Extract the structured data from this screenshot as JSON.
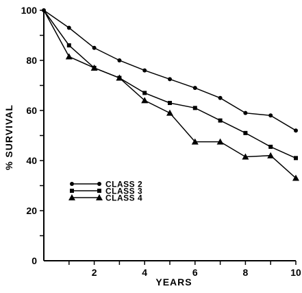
{
  "chart_data": {
    "type": "line",
    "xlabel": "YEARS",
    "ylabel": "% SURVIVAL",
    "xlim": [
      0,
      10
    ],
    "ylim": [
      0,
      100
    ],
    "x_ticks": [
      2,
      4,
      6,
      8,
      10
    ],
    "x_tick_labels": [
      "2",
      "4",
      "6",
      "8",
      "10"
    ],
    "y_ticks": [
      0,
      20,
      40,
      60,
      80,
      100
    ],
    "y_tick_labels": [
      "0",
      "20",
      "40",
      "60",
      "80",
      "100"
    ],
    "grid": false,
    "legend_position": "lower-left",
    "x": [
      0,
      1,
      2,
      3,
      4,
      5,
      6,
      7,
      8,
      9,
      10
    ],
    "series": [
      {
        "name": "CLASS 2",
        "marker": "circle",
        "values": [
          100,
          93,
          85,
          80,
          76,
          72.5,
          69,
          65,
          59,
          58,
          52
        ]
      },
      {
        "name": "CLASS 3",
        "marker": "square",
        "values": [
          100,
          86,
          77,
          73,
          67,
          63,
          61,
          56,
          51,
          45.5,
          41
        ]
      },
      {
        "name": "CLASS 4",
        "marker": "triangle",
        "values": [
          100,
          81.5,
          77,
          73,
          64,
          59,
          47.5,
          47.5,
          41.5,
          42,
          33
        ]
      }
    ]
  }
}
